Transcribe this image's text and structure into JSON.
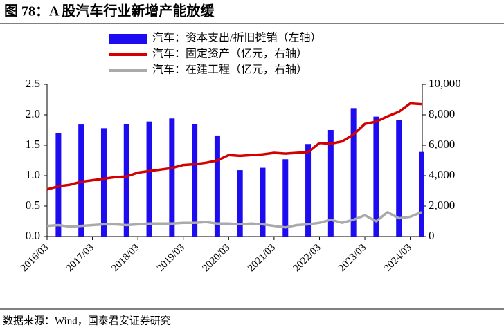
{
  "chart_data": {
    "type": "bar",
    "title": "图 78：A 股汽车行业新增产能放缓",
    "source": "数据来源：Wind，国泰君安证券研究",
    "categories": [
      "2016/03",
      null,
      null,
      null,
      "2017/03",
      null,
      null,
      null,
      "2018/03",
      null,
      null,
      null,
      "2019/03",
      null,
      null,
      null,
      "2020/03",
      null,
      null,
      null,
      "2021/03",
      null,
      null,
      null,
      "2022/03",
      null,
      null,
      null,
      "2023/03",
      null,
      null,
      null,
      "2024/03",
      null
    ],
    "series": [
      {
        "name": "汽车：资本支出/折旧摊销（左轴）",
        "type": "bar",
        "color": "#1e0cf0",
        "values": [
          null,
          1.7,
          null,
          1.84,
          null,
          1.78,
          null,
          1.85,
          null,
          1.89,
          null,
          1.94,
          null,
          1.85,
          null,
          1.66,
          null,
          1.09,
          null,
          1.13,
          null,
          1.27,
          null,
          1.52,
          null,
          1.75,
          null,
          2.11,
          null,
          1.97,
          null,
          1.92,
          null,
          1.39
        ]
      },
      {
        "name": "汽车：固定资产（亿元，右轴）",
        "type": "line",
        "axis": "y2",
        "color": "#d40000",
        "values": [
          3100,
          3300,
          3400,
          3600,
          3700,
          3800,
          3900,
          3950,
          4200,
          4300,
          4400,
          4500,
          4700,
          4750,
          4850,
          5000,
          5350,
          5300,
          5350,
          5400,
          5500,
          5450,
          5500,
          5550,
          6150,
          6100,
          6250,
          6700,
          7400,
          7550,
          7900,
          8200,
          8750,
          8700
        ]
      },
      {
        "name": "汽车：在建工程（亿元，右轴）",
        "type": "line",
        "axis": "y2",
        "color": "#aaaaaa",
        "values": [
          700,
          750,
          650,
          700,
          750,
          800,
          800,
          750,
          800,
          850,
          850,
          850,
          900,
          900,
          950,
          850,
          850,
          800,
          850,
          800,
          700,
          600,
          750,
          800,
          900,
          1100,
          900,
          1100,
          1400,
          1000,
          1600,
          1200,
          1300,
          1600
        ]
      }
    ],
    "ylim": [
      0,
      2.5
    ],
    "yticks": [
      {
        "value": 0,
        "label": "0.0"
      },
      0.5,
      {
        "value": 1,
        "label": "1.0"
      },
      1.5,
      {
        "value": 2,
        "label": "2.0"
      },
      2.5
    ],
    "y2lim": [
      0,
      10000
    ],
    "y2ticks": [
      0,
      {
        "value": 2000,
        "label": "2,000"
      },
      {
        "value": 4000,
        "label": "4,000"
      },
      {
        "value": 6000,
        "label": "6,000"
      },
      {
        "value": 8000,
        "label": "8,000"
      },
      {
        "value": 10000,
        "label": "10,000"
      }
    ],
    "grid": false
  }
}
